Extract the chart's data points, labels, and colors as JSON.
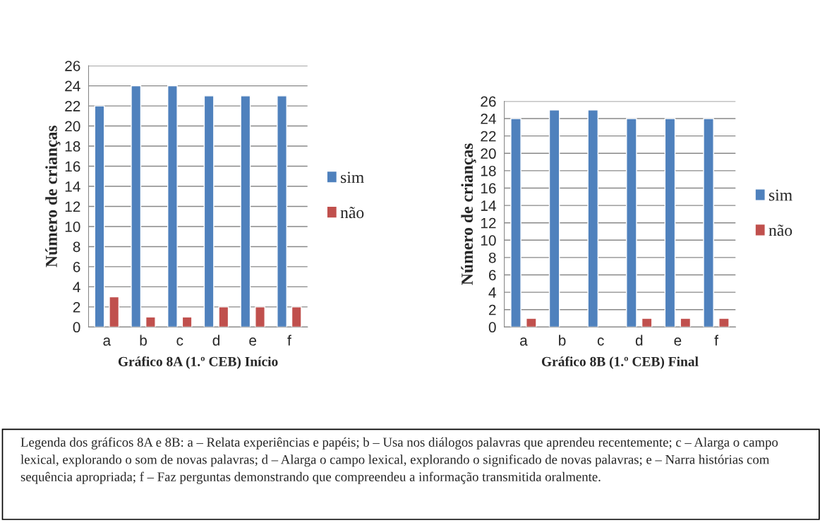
{
  "chart_data": [
    {
      "type": "bar",
      "xlabel": "Gráfico 8A (1.º CEB) Início",
      "ylabel": "Número de crianças",
      "categories": [
        "a",
        "b",
        "c",
        "d",
        "e",
        "f"
      ],
      "series": [
        {
          "name": "sim",
          "color": "#4f81bd",
          "values": [
            22,
            24,
            24,
            23,
            23,
            23
          ]
        },
        {
          "name": "não",
          "color": "#c0504d",
          "values": [
            3,
            1,
            1,
            2,
            2,
            2
          ]
        }
      ],
      "ylim": [
        0,
        26
      ],
      "yticks": [
        0,
        2,
        4,
        6,
        8,
        10,
        12,
        14,
        16,
        18,
        20,
        22,
        24,
        26
      ],
      "grid": "y",
      "legend": "right",
      "annotations": [
        "Legenda dos gráficos 8A e 8B: a – Relata experiências e papéis; b – Usa nos diálogos palavras que aprendeu recentemente; c – Alarga o campo lexical, explorando o som de novas palavras; d – Alarga o campo lexical, explorando o significado de novas palavras; e – Narra histórias com sequência apropriada; f – Faz perguntas demonstrando que compreendeu a informação transmitida oralmente."
      ]
    },
    {
      "type": "bar",
      "xlabel": "Gráfico 8B (1.º CEB) Final",
      "ylabel": "Número de crianças",
      "categories": [
        "a",
        "b",
        "c",
        "d",
        "e",
        "f"
      ],
      "series": [
        {
          "name": "sim",
          "color": "#4f81bd",
          "values": [
            24,
            25,
            25,
            24,
            24,
            24
          ]
        },
        {
          "name": "não",
          "color": "#c0504d",
          "values": [
            1,
            null,
            null,
            1,
            1,
            1
          ]
        }
      ],
      "ylim": [
        0,
        26
      ],
      "yticks": [
        0,
        2,
        4,
        6,
        8,
        10,
        12,
        14,
        16,
        18,
        20,
        22,
        24,
        26
      ],
      "grid": "y",
      "legend": "right"
    }
  ]
}
